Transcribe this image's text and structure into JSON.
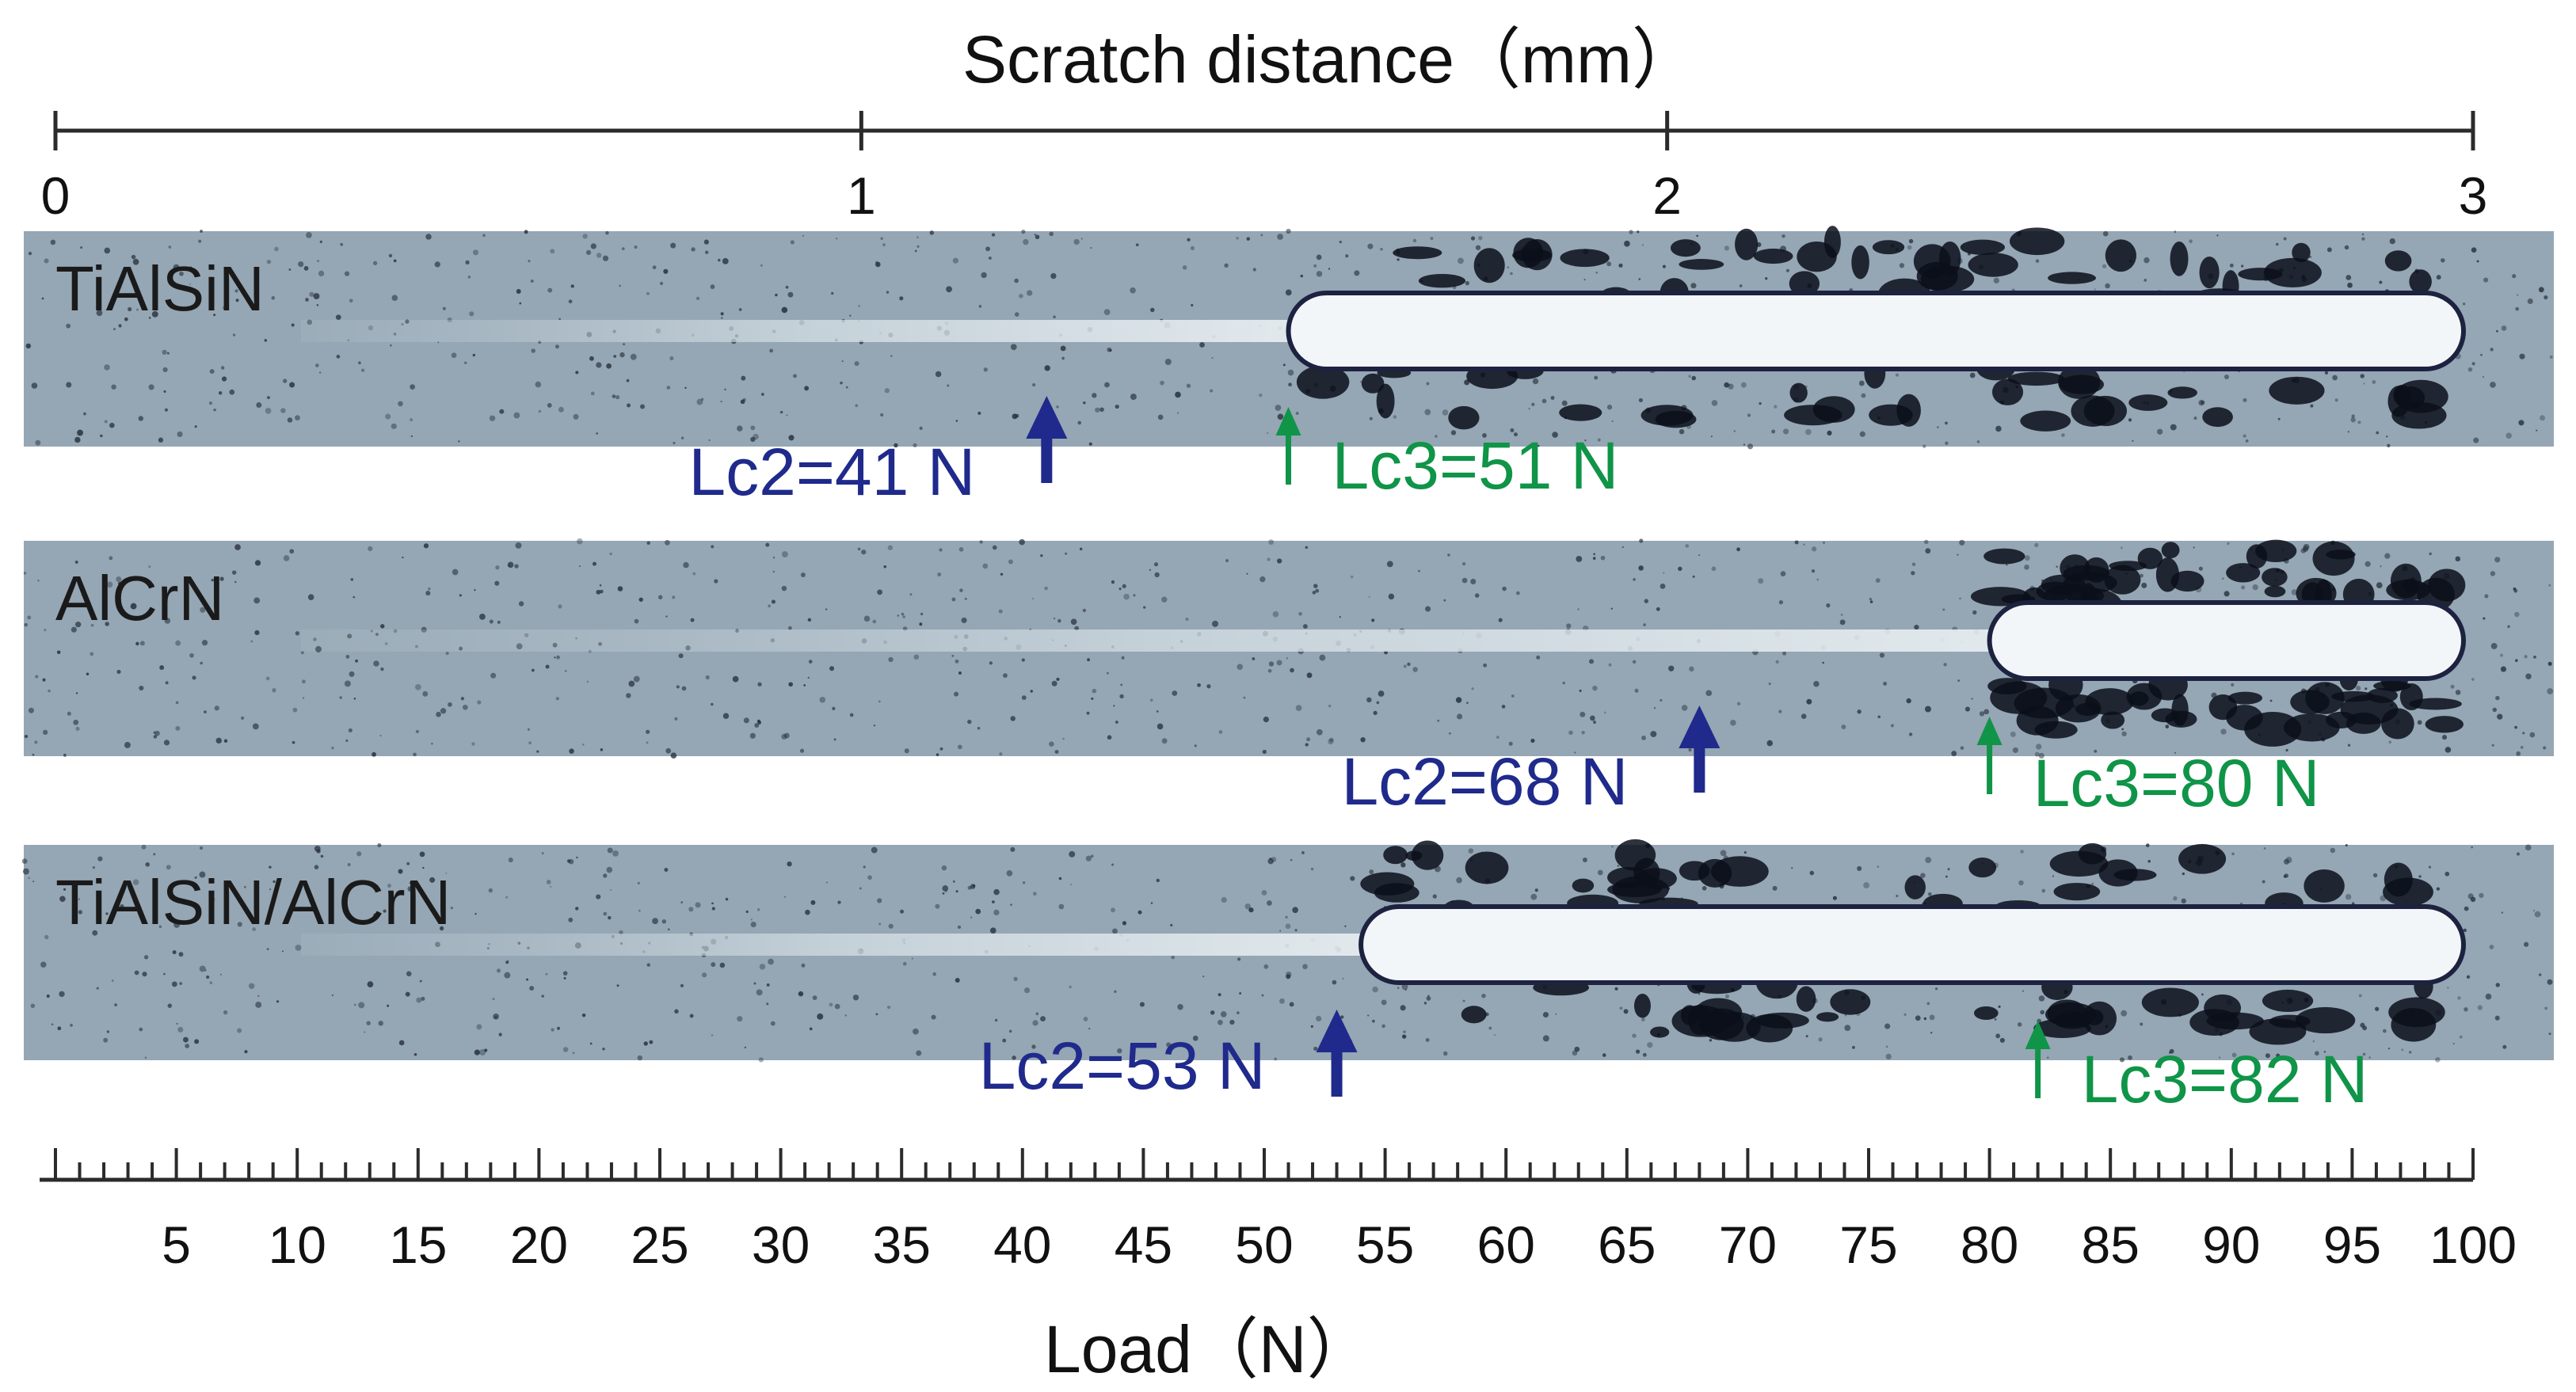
{
  "top_axis": {
    "title": "Scratch distance（mm）",
    "range": [
      0,
      3
    ],
    "ticks": [
      "0",
      "1",
      "2",
      "3"
    ]
  },
  "bottom_axis": {
    "title": "Load（N）",
    "range": [
      0,
      100
    ],
    "minor_step": 1,
    "major_step": 5,
    "labels": [
      "5",
      "10",
      "15",
      "20",
      "25",
      "30",
      "35",
      "40",
      "45",
      "50",
      "55",
      "60",
      "65",
      "70",
      "75",
      "80",
      "85",
      "90",
      "95",
      "100"
    ]
  },
  "colors": {
    "lc2": "#1f2a8c",
    "lc3": "#0f9448",
    "substrate": "#95a6b4",
    "scratch": "#f2f6f8"
  },
  "samples": [
    {
      "name": "TiAlSiN",
      "failure_start_load": 51,
      "lc2": {
        "load": 41,
        "label": "Lc2=41 N"
      },
      "lc3": {
        "load": 51,
        "label": "Lc3=51 N"
      }
    },
    {
      "name": "AlCrN",
      "failure_start_load": 80,
      "lc2": {
        "load": 68,
        "label": "Lc2=68 N"
      },
      "lc3": {
        "load": 80,
        "label": "Lc3=80 N"
      }
    },
    {
      "name": "TiAlSiN/AlCrN",
      "failure_start_load": 54,
      "lc2": {
        "load": 53,
        "label": "Lc2=53 N"
      },
      "lc3": {
        "load": 82,
        "label": "Lc3=82 N"
      }
    }
  ]
}
